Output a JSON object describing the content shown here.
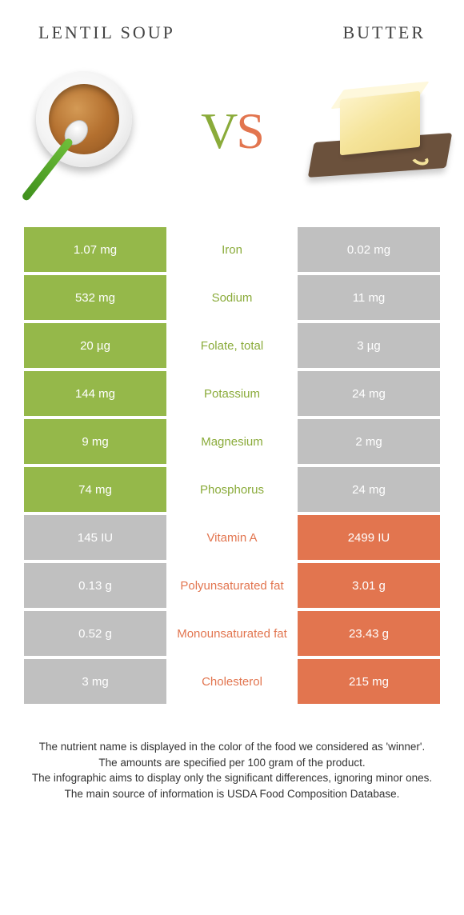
{
  "titles": {
    "left": "LENTIL SOUP",
    "right": "BUTTER"
  },
  "vs": {
    "v": "V",
    "s": "S"
  },
  "colors": {
    "left_winner": "#95b84a",
    "left_loser": "#c0c0c0",
    "right_winner": "#e2754f",
    "right_loser": "#c0c0c0",
    "label_left": "#8aab3a",
    "label_right": "#e2754f"
  },
  "rows": [
    {
      "nutrient": "Iron",
      "left": "1.07 mg",
      "right": "0.02 mg",
      "winner": "left"
    },
    {
      "nutrient": "Sodium",
      "left": "532 mg",
      "right": "11 mg",
      "winner": "left"
    },
    {
      "nutrient": "Folate, total",
      "left": "20 µg",
      "right": "3 µg",
      "winner": "left"
    },
    {
      "nutrient": "Potassium",
      "left": "144 mg",
      "right": "24 mg",
      "winner": "left"
    },
    {
      "nutrient": "Magnesium",
      "left": "9 mg",
      "right": "2 mg",
      "winner": "left"
    },
    {
      "nutrient": "Phosphorus",
      "left": "74 mg",
      "right": "24 mg",
      "winner": "left"
    },
    {
      "nutrient": "Vitamin A",
      "left": "145 IU",
      "right": "2499 IU",
      "winner": "right"
    },
    {
      "nutrient": "Polyunsaturated fat",
      "left": "0.13 g",
      "right": "3.01 g",
      "winner": "right"
    },
    {
      "nutrient": "Monounsaturated fat",
      "left": "0.52 g",
      "right": "23.43 g",
      "winner": "right"
    },
    {
      "nutrient": "Cholesterol",
      "left": "3 mg",
      "right": "215 mg",
      "winner": "right"
    }
  ],
  "footer": {
    "l1": "The nutrient name is displayed in the color of the food we considered as 'winner'.",
    "l2": "The amounts are specified per 100 gram of the product.",
    "l3": "The infographic aims to display only the significant differences, ignoring minor ones.",
    "l4": "The main source of information is USDA Food Composition Database."
  }
}
